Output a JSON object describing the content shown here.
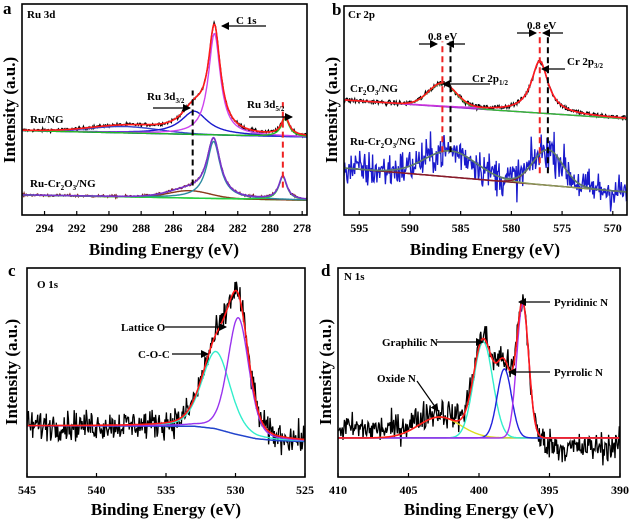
{
  "figure": {
    "xlabel": "Binding Energy (eV)",
    "ylabel": "Intensity (a.u.)"
  },
  "chart_data": [
    {
      "letter": "a",
      "title": "Ru 3d",
      "type": "line",
      "xlabel": "Binding Energy (eV)",
      "ylabel": "Intensity (a.u.)",
      "xlim": [
        295.4,
        277.7
      ],
      "ylim": [
        0,
        1
      ],
      "xticks": [
        294,
        292,
        290,
        288,
        286,
        284,
        282,
        280,
        278
      ],
      "series": [
        {
          "name": {
            "pre": "Ru/NG",
            "sub1": "",
            "mid": "",
            "sub2": "",
            "post": ""
          },
          "data_color": "#000000",
          "envelope_color": "#ff1a1a",
          "baseline_color": "#2233cc",
          "noise": 0.004,
          "baseline": [
            [
              295.4,
              0.4
            ],
            [
              277.7,
              0.37
            ]
          ],
          "components": [
            {
              "label": "broad",
              "center": 289.0,
              "height": 0.03,
              "fwhm": 5.0,
              "shape": "gaussian",
              "color": "#3344cc"
            },
            {
              "label": "Ru 3d3/2",
              "center": 284.7,
              "height": 0.11,
              "fwhm": 2.0,
              "shape": "lorentzian",
              "color": "#1a1acc"
            },
            {
              "label": "C 1s",
              "center": 283.45,
              "height": 0.48,
              "fwhm": 0.9,
              "shape": "lorentzian",
              "color": "#cc44ee"
            },
            {
              "label": "Ru 3d5/2",
              "center": 279.05,
              "height": 0.085,
              "fwhm": 0.6,
              "shape": "lorentzian",
              "color": "#22bb22"
            }
          ]
        },
        {
          "name": {
            "pre": "Ru-Cr",
            "sub1": "2",
            "mid": "O",
            "sub2": "3",
            "post": "/NG"
          },
          "data_color": "#7a1a1a",
          "envelope_color": "#7733cc",
          "baseline_color": "#44dd22",
          "noise": 0.003,
          "baseline": [
            [
              295.4,
              0.095
            ],
            [
              277.7,
              0.07
            ]
          ],
          "components": [
            {
              "label": "Ru 3d3/2",
              "center": 285.0,
              "height": 0.035,
              "fwhm": 3.0,
              "shape": "gaussian",
              "color": "#8a3a1a"
            },
            {
              "label": "C 1s",
              "center": 283.5,
              "height": 0.27,
              "fwhm": 1.0,
              "shape": "lorentzian",
              "color": "#2a8aa0"
            },
            {
              "label": "Ru 3d5/2",
              "center": 279.2,
              "height": 0.11,
              "fwhm": 0.6,
              "shape": "lorentzian",
              "color": "#22cc44"
            }
          ]
        }
      ],
      "reference_lines": [
        {
          "x": 284.8,
          "y": [
            0.14,
            0.59
          ],
          "color": "#000000"
        },
        {
          "x": 279.2,
          "y": [
            0.13,
            0.535
          ],
          "color": "#ee2222"
        }
      ],
      "annotations": {
        "c1s": {
          "text": "C 1s",
          "sub": ""
        },
        "ru3d32": {
          "text": "Ru 3d",
          "sub": "3/2"
        },
        "ru3d52": {
          "text": "Ru 3d",
          "sub": "5/2"
        }
      }
    },
    {
      "letter": "b",
      "title": "Cr 2p",
      "type": "line",
      "xlabel": "Binding Energy (eV)",
      "ylabel": "Intensity (a.u.)",
      "xlim": [
        596.5,
        568.6
      ],
      "ylim": [
        0,
        1
      ],
      "xticks": [
        595,
        590,
        585,
        580,
        575,
        570
      ],
      "series": [
        {
          "name": {
            "pre": "Cr",
            "sub1": "2",
            "mid": "O",
            "sub2": "3",
            "post": "/NG"
          },
          "data_color": "#000000",
          "envelope_color": "#ff1a1a",
          "baseline_color": "#9933cc",
          "noise": 0.006,
          "baseline": [
            [
              596.5,
              0.55
            ],
            [
              568.6,
              0.46
            ]
          ],
          "components": [
            {
              "label": "Cr 2p1/2",
              "center": 586.8,
              "height": 0.11,
              "fwhm": 3.2,
              "shape": "gaussian",
              "color": "#33bb33"
            },
            {
              "label": "Cr 2p3/2",
              "center": 577.2,
              "height": 0.25,
              "fwhm": 2.0,
              "shape": "lorentzian",
              "color": "#cc33dd"
            }
          ]
        },
        {
          "name": {
            "pre": "Ru-Cr",
            "sub1": "2",
            "mid": "O",
            "sub2": "3",
            "post": "/NG"
          },
          "data_color": "#1a1acc",
          "envelope_color": "#5a7a6a",
          "baseline_color": "#7a2a2a",
          "noise": 0.045,
          "baseline": [
            [
              596.5,
              0.225
            ],
            [
              568.6,
              0.11
            ]
          ],
          "components": [
            {
              "label": "Cr 2p1/2",
              "center": 586.0,
              "height": 0.125,
              "fwhm": 6.0,
              "shape": "gaussian",
              "color": "#8a9a5a"
            },
            {
              "label": "Cr 2p3/2",
              "center": 576.4,
              "height": 0.17,
              "fwhm": 3.5,
              "shape": "gaussian",
              "color": "#8a1a2a"
            }
          ]
        }
      ],
      "reference_lines": [
        {
          "x": 586.8,
          "y": [
            0.3,
            0.83
          ],
          "color": "#ee2222"
        },
        {
          "x": 586.0,
          "y": [
            0.3,
            0.83
          ],
          "color": "#000000"
        },
        {
          "x": 577.2,
          "y": [
            0.2,
            0.875
          ],
          "color": "#ee2222"
        },
        {
          "x": 576.4,
          "y": [
            0.2,
            0.875
          ],
          "color": "#000000"
        }
      ],
      "annotations": {
        "shift_left": {
          "text": "0.8 eV",
          "sub": ""
        },
        "shift_right": {
          "text": "0.8 eV",
          "sub": ""
        },
        "cr2p12": {
          "text": "Cr 2p",
          "sub": "1/2"
        },
        "cr2p32": {
          "text": "Cr 2p",
          "sub": "3/2"
        }
      }
    },
    {
      "letter": "c",
      "title": "O 1s",
      "type": "line",
      "xlabel": "Binding Energy (eV)",
      "ylabel": "Intensity (a.u.)",
      "xlim": [
        545,
        525
      ],
      "ylim": [
        0,
        1
      ],
      "xticks": [
        545,
        540,
        535,
        530,
        525
      ],
      "series": [
        {
          "name": {
            "pre": "",
            "sub1": "",
            "mid": "",
            "sub2": "",
            "post": ""
          },
          "data_color": "#000000",
          "envelope_color": "#ff1a1a",
          "baseline_color": "#2244cc",
          "noise": 0.035,
          "baseline": [
            [
              545,
              0.245
            ],
            [
              533,
              0.243
            ],
            [
              531.5,
              0.232
            ],
            [
              530,
              0.205
            ],
            [
              528.5,
              0.183
            ],
            [
              527,
              0.174
            ],
            [
              525,
              0.17
            ]
          ],
          "components": [
            {
              "label": "C-O-C",
              "center": 531.4,
              "height": 0.37,
              "fwhm": 2.4,
              "shape": "voigt",
              "color": "#33eecc"
            },
            {
              "label": "Lattice O",
              "center": 529.8,
              "height": 0.56,
              "fwhm": 1.8,
              "shape": "voigt",
              "color": "#9933ee"
            }
          ]
        }
      ],
      "reference_lines": [],
      "annotations": {
        "lattice": {
          "text": "Lattice O",
          "sub": ""
        },
        "coc": {
          "text": "C-O-C",
          "sub": ""
        }
      }
    },
    {
      "letter": "d",
      "title": "N 1s",
      "type": "line",
      "xlabel": "Binding Energy (eV)",
      "ylabel": "Intensity (a.u.)",
      "xlim": [
        410,
        390
      ],
      "ylim": [
        0,
        1
      ],
      "xticks": [
        410,
        405,
        400,
        395,
        390
      ],
      "series": [
        {
          "name": {
            "pre": "",
            "sub1": "",
            "mid": "",
            "sub2": "",
            "post": ""
          },
          "data_color": "#000000",
          "envelope_color": "#ff1a1a",
          "baseline_color": "#2244cc",
          "noise": 0.035,
          "data_offset": [
            [
              410,
              0.05
            ],
            [
              404,
              0.03
            ],
            [
              396,
              0.0
            ],
            [
              394,
              -0.05
            ],
            [
              390,
              -0.04
            ]
          ],
          "baseline": [
            [
              410,
              0.187
            ],
            [
              390,
              0.187
            ]
          ],
          "components": [
            {
              "label": "Oxide N",
              "center": 402.8,
              "height": 0.1,
              "fwhm": 3.5,
              "shape": "gaussian",
              "color": "#dddd22"
            },
            {
              "label": "Graphilic N",
              "center": 399.7,
              "height": 0.46,
              "fwhm": 1.6,
              "shape": "gaussian",
              "color": "#33eecc"
            },
            {
              "label": "Pyrrolic N",
              "center": 398.2,
              "height": 0.33,
              "fwhm": 1.2,
              "shape": "gaussian",
              "color": "#2222dd"
            },
            {
              "label": "Pyridinic N",
              "center": 396.9,
              "height": 0.64,
              "fwhm": 1.0,
              "shape": "gaussian",
              "color": "#aa33ee"
            }
          ]
        }
      ],
      "reference_lines": [],
      "annotations": {
        "graphilic": {
          "text": "Graphilic N",
          "sub": ""
        },
        "oxide": {
          "text": "Oxide N",
          "sub": ""
        },
        "pyridinic": {
          "text": "Pyridinic N",
          "sub": ""
        },
        "pyrrolic": {
          "text": "Pyrrolic N",
          "sub": ""
        }
      }
    }
  ]
}
